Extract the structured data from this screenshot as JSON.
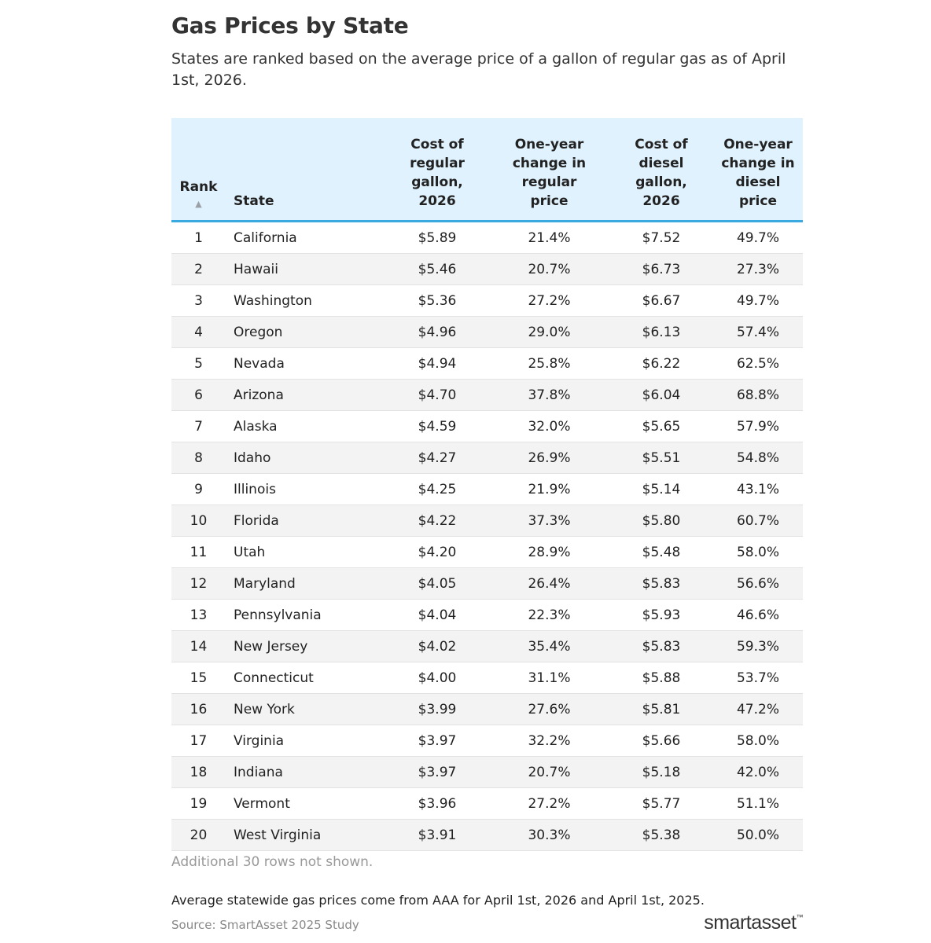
{
  "title": "Gas Prices by State",
  "subtitle": "States are ranked based on the average price of a gallon of regular gas as of April 1st, 2026.",
  "chart_data": {
    "type": "table",
    "columns": [
      {
        "key": "rank",
        "label": "Rank"
      },
      {
        "key": "state",
        "label": "State"
      },
      {
        "key": "regular_cost",
        "label": "Cost of regular gallon, 2026"
      },
      {
        "key": "regular_change",
        "label": "One-year change in regular price"
      },
      {
        "key": "diesel_cost",
        "label": "Cost of diesel gallon, 2026"
      },
      {
        "key": "diesel_change",
        "label": "One-year change in diesel price"
      }
    ],
    "rows": [
      [
        "1",
        "California",
        "$5.89",
        "21.4%",
        "$7.52",
        "49.7%"
      ],
      [
        "2",
        "Hawaii",
        "$5.46",
        "20.7%",
        "$6.73",
        "27.3%"
      ],
      [
        "3",
        "Washington",
        "$5.36",
        "27.2%",
        "$6.67",
        "49.7%"
      ],
      [
        "4",
        "Oregon",
        "$4.96",
        "29.0%",
        "$6.13",
        "57.4%"
      ],
      [
        "5",
        "Nevada",
        "$4.94",
        "25.8%",
        "$6.22",
        "62.5%"
      ],
      [
        "6",
        "Arizona",
        "$4.70",
        "37.8%",
        "$6.04",
        "68.8%"
      ],
      [
        "7",
        "Alaska",
        "$4.59",
        "32.0%",
        "$5.65",
        "57.9%"
      ],
      [
        "8",
        "Idaho",
        "$4.27",
        "26.9%",
        "$5.51",
        "54.8%"
      ],
      [
        "9",
        "Illinois",
        "$4.25",
        "21.9%",
        "$5.14",
        "43.1%"
      ],
      [
        "10",
        "Florida",
        "$4.22",
        "37.3%",
        "$5.80",
        "60.7%"
      ],
      [
        "11",
        "Utah",
        "$4.20",
        "28.9%",
        "$5.48",
        "58.0%"
      ],
      [
        "12",
        "Maryland",
        "$4.05",
        "26.4%",
        "$5.83",
        "56.6%"
      ],
      [
        "13",
        "Pennsylvania",
        "$4.04",
        "22.3%",
        "$5.93",
        "46.6%"
      ],
      [
        "14",
        "New Jersey",
        "$4.02",
        "35.4%",
        "$5.83",
        "59.3%"
      ],
      [
        "15",
        "Connecticut",
        "$4.00",
        "31.1%",
        "$5.88",
        "53.7%"
      ],
      [
        "16",
        "New York",
        "$3.99",
        "27.6%",
        "$5.81",
        "47.2%"
      ],
      [
        "17",
        "Virginia",
        "$3.97",
        "32.2%",
        "$5.66",
        "58.0%"
      ],
      [
        "18",
        "Indiana",
        "$3.97",
        "20.7%",
        "$5.18",
        "42.0%"
      ],
      [
        "19",
        "Vermont",
        "$3.96",
        "27.2%",
        "$5.77",
        "51.1%"
      ],
      [
        "20",
        "West Virginia",
        "$3.91",
        "30.3%",
        "$5.38",
        "50.0%"
      ]
    ],
    "sort": {
      "column": "rank",
      "direction": "ascending",
      "icon": "sort-ascending-icon"
    }
  },
  "rows_note": "Additional 30 rows not shown.",
  "footnote": "Average statewide gas prices come from AAA for April 1st, 2026 and April 1st, 2025.",
  "source": "Source: SmartAsset 2025 Study",
  "logo": {
    "text": "smartasset",
    "tm": "™"
  },
  "colors": {
    "header_bg": "#dff2fd",
    "header_border": "#3aa9e0",
    "stripe": "#f3f3f3",
    "muted": "#999999"
  }
}
